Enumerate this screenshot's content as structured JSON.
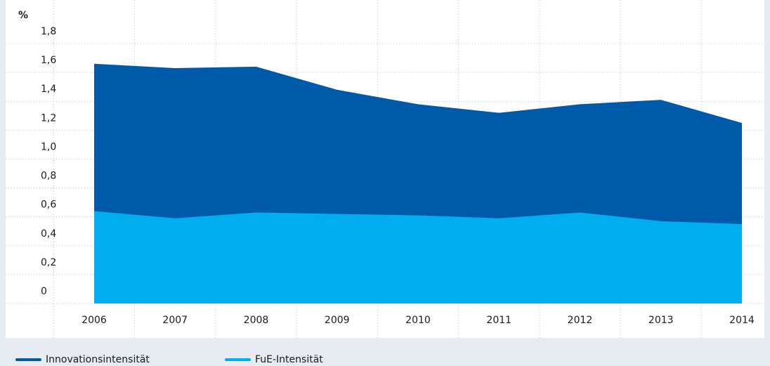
{
  "chart_data": {
    "type": "area",
    "unit": "%",
    "categories": [
      "2006",
      "2007",
      "2008",
      "2009",
      "2010",
      "2011",
      "2012",
      "2013",
      "2014"
    ],
    "series": [
      {
        "name": "Innovationsintensität",
        "color": "#005aaa",
        "values": [
          1.66,
          1.63,
          1.64,
          1.48,
          1.38,
          1.32,
          1.38,
          1.41,
          1.25
        ]
      },
      {
        "name": "FuE-Intensität",
        "color": "#00aeef",
        "values": [
          0.64,
          0.59,
          0.63,
          0.62,
          0.61,
          0.59,
          0.63,
          0.57,
          0.55
        ]
      }
    ],
    "ylim": [
      0,
      1.8
    ],
    "yticks": [
      0,
      {
        "value": 0.2,
        "label": "0,2"
      },
      {
        "value": 0.4,
        "label": "0,4"
      },
      {
        "value": 0.6,
        "label": "0,6"
      },
      {
        "value": 0.8,
        "label": "0,8"
      },
      {
        "value": 1.0,
        "label": "1,0"
      },
      {
        "value": 1.2,
        "label": "1,2"
      },
      {
        "value": 1.4,
        "label": "1,4"
      },
      {
        "value": 1.6,
        "label": "1,6"
      },
      {
        "value": 1.8,
        "label": "1,8"
      }
    ],
    "grid": true
  }
}
